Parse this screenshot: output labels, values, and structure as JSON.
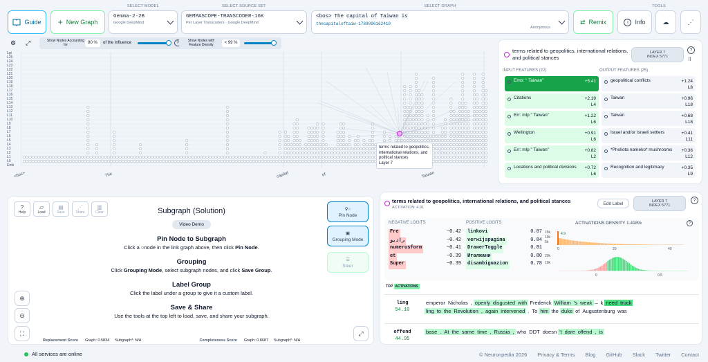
{
  "header": {
    "guide": "Guide",
    "new_graph": "New Graph",
    "select_model_label": "SELECT MODEL",
    "model": "Gemma-2-2B",
    "model_org": "Google DeepMind",
    "select_source_label": "SELECT SOURCE SET",
    "source": "GEMMASCOPE-TRANSCODER-16K",
    "source_sub": "Per Layer Transcoders · Google DeepMind",
    "select_graph_label": "SELECT GRAPH",
    "graph_tokens": [
      "<bos>",
      "The",
      "capital",
      "of",
      "Taiwan",
      "is"
    ],
    "graph_id": "thecapitaloftaiw-1789096162410",
    "graph_owner": "Anonymous",
    "remix": "Remix",
    "tools_label": "TOOLS",
    "info": "Info"
  },
  "graph_controls": {
    "show_nodes": "Show Nodes Accounting for",
    "influence_val": "80",
    "pct": "%",
    "of_influence": "of the Influence",
    "show_density": "Show Nodes with Feature Density",
    "density_val": "< 99",
    "pct2": "%"
  },
  "layers": [
    "Lgt",
    "L25",
    "L24",
    "L23",
    "L22",
    "L21",
    "L20",
    "L19",
    "L18",
    "L17",
    "L16",
    "L15",
    "L14",
    "L13",
    "L12",
    "L11",
    "L10",
    "L9",
    "L8",
    "L7",
    "L6",
    "L5",
    "L4",
    "L3",
    "L2",
    "L1",
    "L0",
    "Emb"
  ],
  "x_tokens": [
    "<bos>",
    "The",
    "capital",
    "of",
    "Taiwan"
  ],
  "tooltip": {
    "text": "terms related to geopolitics, international relations, and political stances",
    "layer": "Layer 7"
  },
  "feature_panel": {
    "title": "terms related to geopolitics, international relations, and political stances",
    "layer_btn": "LAYER 7",
    "index_btn": "INDEX 5771",
    "input_label": "INPUT FEATURES (22)",
    "output_label": "OUTPUT FEATURES (25)",
    "inputs": [
      {
        "name": "Emb: \" Taiwan\"",
        "val": "+5.41",
        "layer": ""
      },
      {
        "name": "Citations",
        "val": "+2.19",
        "layer": "L4"
      },
      {
        "name": "Err: mlp \" Taiwan\"",
        "val": "+1.22",
        "layer": "L6"
      },
      {
        "name": "Wellington",
        "val": "+0.91",
        "layer": "L6"
      },
      {
        "name": "Err: mlp \" Taiwan\"",
        "val": "+0.82",
        "layer": "L2"
      },
      {
        "name": "Locations and political divisions",
        "val": "+0.72",
        "layer": "L6"
      }
    ],
    "outputs": [
      {
        "name": "geopolitical conflicts",
        "val": "+1.24",
        "layer": "L8"
      },
      {
        "name": "Taiwan",
        "val": "+0.96",
        "layer": "L18"
      },
      {
        "name": "Taiwan",
        "val": "+0.68",
        "layer": "L18"
      },
      {
        "name": "Israel and/or Israeli settlers",
        "val": "+0.41",
        "layer": "L11"
      },
      {
        "name": "*Pholiota nameko* mushrooms",
        "val": "+0.36",
        "layer": "L12"
      },
      {
        "name": "Recognition and legitimacy",
        "val": "+0.35",
        "layer": "L9"
      }
    ]
  },
  "subgraph": {
    "tools": [
      "Help",
      "Load",
      "Save",
      "Share",
      "Clear"
    ],
    "title": "Subgraph (Solution)",
    "video": "Video Demo",
    "pin_btn": "Pin Node",
    "group_btn": "Grouping Mode",
    "steer_btn": "Steer",
    "sections": [
      {
        "h": "Pin Node to Subgraph",
        "p1": "Click a",
        "p2": "node in the link graph above, then click",
        "p3": "Pin Node",
        "p4": "."
      },
      {
        "h": "Grouping",
        "p1": "Click",
        "p2": "Grouping Mode",
        "p3": ", select subgraph nodes, and click",
        "p4": "Save Group",
        "p5": "."
      },
      {
        "h": "Label Group",
        "p1": "Click the label under a group to give it a custom label."
      },
      {
        "h": "Save & Share",
        "p1": "Use the tools at the top left to load, save, and share your subgraph."
      }
    ],
    "replacement_label": "Replacement Score",
    "graph_rs": "Graph: 0.5834",
    "sub_rs": "Subgraph*: N/A",
    "completeness_label": "Completeness Score",
    "graph_cs": "Graph: 0.8687",
    "sub_cs": "Subgraph*: N/A"
  },
  "detail": {
    "title": "terms related to geopolitics, international relations, and political stances",
    "activation": "ACTIVATION: 4.91",
    "edit": "Edit Label",
    "layer": "LAYER 7",
    "index": "INDEX 5771",
    "neg_label": "NEGATIVE LOGITS",
    "pos_label": "POSITIVE LOGITS",
    "density_label": "ACTIVATIONS DENSITY 1.418%",
    "neg": [
      {
        "t": "Fre",
        "v": "−0.42"
      },
      {
        "t": "رادیو",
        "v": "−0.42"
      },
      {
        "t": "numerusform",
        "v": "−0.41"
      },
      {
        "t": "et",
        "v": "−0.39"
      },
      {
        "t": "Super",
        "v": "−0.39"
      }
    ],
    "pos": [
      {
        "t": "linkovi",
        "v": "0.87"
      },
      {
        "t": "verwijspagina",
        "v": "0.84"
      },
      {
        "t": "DrawerToggle",
        "v": "0.81"
      },
      {
        "t": "Игалжани",
        "v": "0.80"
      },
      {
        "t": "disambiguazion",
        "v": "0.78"
      }
    ],
    "hist_ticks_top": [
      "15k",
      "10k",
      "5k"
    ],
    "hist_val": "4.9",
    "hist_x1": [
      "0",
      "20",
      "40"
    ],
    "hist_ticks_bot": [
      "20k",
      "10k"
    ],
    "hist_x2": [
      "0",
      "0.5"
    ],
    "top_label": "TOP",
    "act_label": "ACTIVATIONS",
    "examples": [
      {
        "tok": "ling",
        "val": "54.10",
        "line1": [
          "emperor",
          "Nicholas",
          ",",
          "openly",
          "disgusted",
          "with",
          "Frederick",
          "William",
          "'s",
          "weak",
          "–",
          "k",
          "need",
          "truck"
        ],
        "line2": [
          "ling",
          "to",
          "the",
          "Revolution",
          ",",
          "again",
          "intervened",
          ".",
          "To",
          "him",
          "the",
          "duke",
          "of",
          "Augustenburg",
          "was"
        ]
      },
      {
        "tok": "offend",
        "val": "44.95",
        "line1": [
          "base",
          ".",
          "At",
          "the",
          "same",
          "time",
          ",",
          "Russia",
          ",",
          "who",
          "DDT",
          "doesn",
          "'t",
          "dare",
          "offend",
          ",",
          "is"
        ]
      }
    ]
  },
  "footer": {
    "status": "All services are online",
    "copy": "© Neuronpedia 2026",
    "links": [
      "Privacy & Terms",
      "Blog",
      "GitHub",
      "Slack",
      "Twitter",
      "Contact"
    ]
  }
}
